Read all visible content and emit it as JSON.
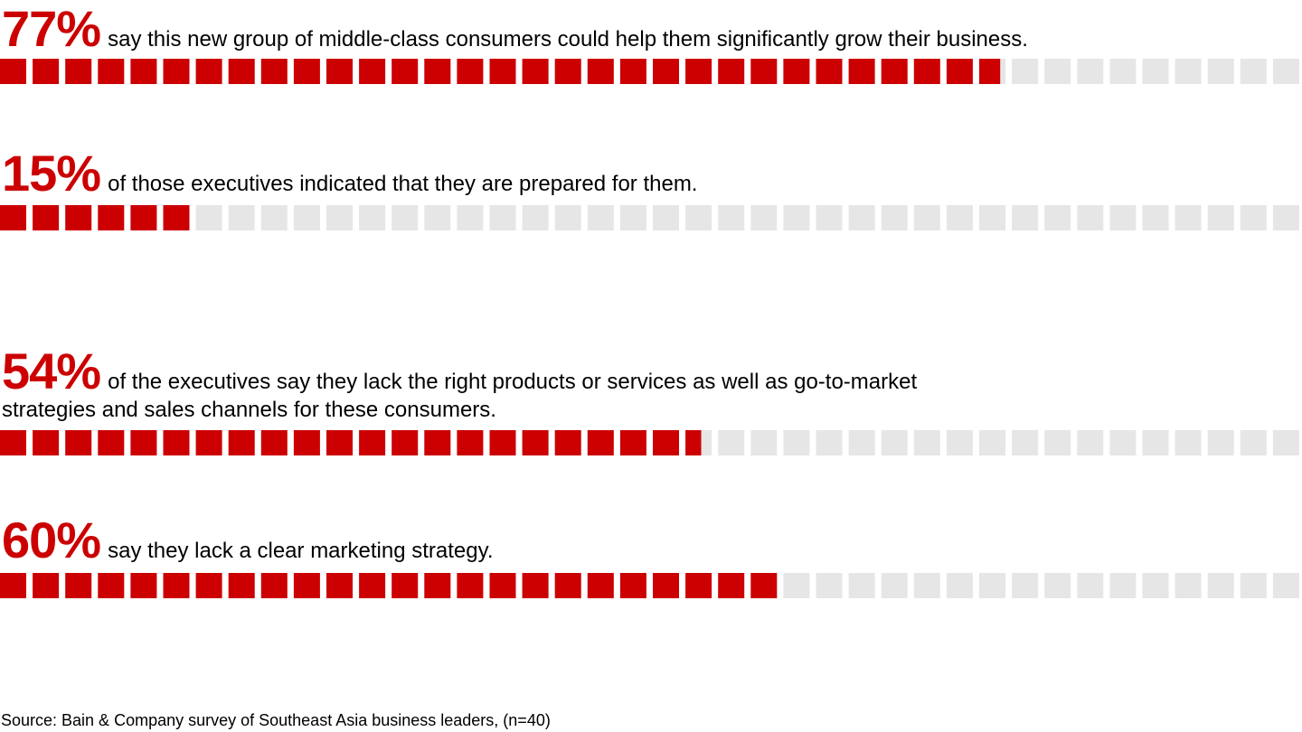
{
  "colors": {
    "accent": "#cc0000",
    "empty": "#e6e6e6"
  },
  "chart_data": {
    "type": "waffle",
    "cells_per_row": 40,
    "max": 100,
    "items": [
      {
        "value": 77,
        "label": "77%",
        "text": "say this new group of middle-class consumers could help them significantly grow their business."
      },
      {
        "value": 15,
        "label": "15%",
        "text": "of those executives indicated that they are prepared for them."
      },
      {
        "value": 54,
        "label": "54%",
        "text": "of the executives say they lack the right products or services as well as go-to-market strategies and sales channels for these consumers."
      },
      {
        "value": 60,
        "label": "60%",
        "text": "say they lack a clear marketing strategy."
      }
    ],
    "source": "Source: Bain & Company survey of Southeast Asia business leaders, (n=40)"
  }
}
